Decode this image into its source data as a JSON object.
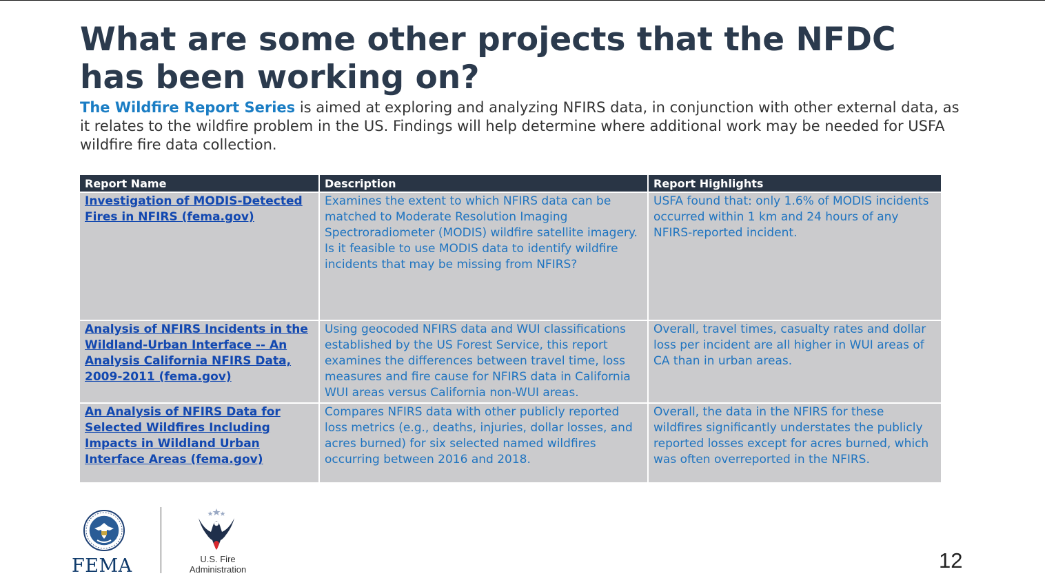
{
  "slide": {
    "title": "What are some other projects that the NFDC has been working on?",
    "intro_highlight": "The Wildfire Report Series",
    "intro_rest": " is aimed at exploring and analyzing NFIRS data, in conjunction with other external data, as it relates to the wildfire problem in the US. Findings will help determine where additional work may be needed for USFA wildfire fire data collection.",
    "page_number": "12"
  },
  "table": {
    "headers": [
      "Report Name",
      "Description",
      "Report Highlights"
    ],
    "rows": [
      {
        "name": "Investigation of MODIS-Detected Fires in NFIRS (fema.gov)",
        "description": "Examines the extent to which NFIRS data can be matched to Moderate Resolution Imaging Spectroradiometer (MODIS) wildfire satellite imagery. Is it feasible to use MODIS data to identify wildfire incidents that may be missing from NFIRS?",
        "highlights": "USFA found that: only 1.6% of MODIS incidents occurred within 1 km and 24 hours of any NFIRS-reported incident."
      },
      {
        "name": "Analysis of NFIRS Incidents in the Wildland-Urban Interface -- An Analysis California NFIRS Data, 2009-2011 (fema.gov)",
        "description": "Using geocoded NFIRS data and WUI classifications established by the US Forest Service, this report examines the differences between travel time, loss measures and fire cause for NFIRS data in California WUI areas versus California non-WUI areas.",
        "highlights": "Overall, travel times, casualty rates and dollar loss per incident are all higher in WUI areas of CA than in urban areas."
      },
      {
        "name": "An Analysis of NFIRS Data for Selected Wildfires Including Impacts in Wildland Urban Interface Areas (fema.gov)",
        "description": "Compares NFIRS data with other publicly reported loss metrics (e.g., deaths, injuries, dollar losses, and acres burned) for six selected named wildfires occurring between 2016 and 2018.",
        "highlights": "Overall, the data in the NFIRS for these wildfires significantly understates the publicly reported losses except for acres burned, which was often overreported in the NFIRS."
      }
    ]
  },
  "footer": {
    "fema_label": "FEMA",
    "usfa_line1": "U.S. Fire",
    "usfa_line2": "Administration",
    "logos": [
      "dhs-seal-icon",
      "usfa-eagle-icon"
    ]
  },
  "colors": {
    "title": "#2b3a4d",
    "highlight": "#1a7dc4",
    "header_bg": "#293545",
    "cell_bg": "#cbcbcd",
    "link": "#1248b0",
    "cell_text": "#1f74c0"
  }
}
